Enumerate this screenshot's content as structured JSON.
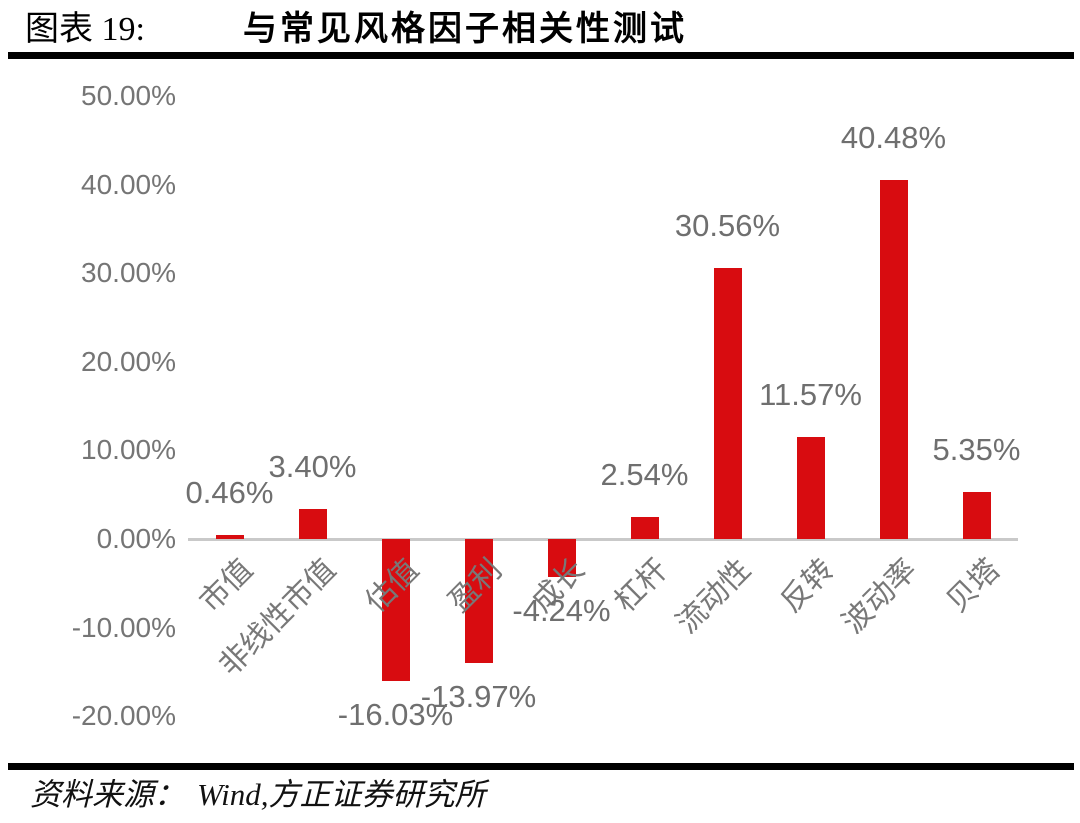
{
  "header": {
    "figure_label": "图表 19:",
    "figure_title": "与常见风格因子相关性测试"
  },
  "source": {
    "label": "资料来源：",
    "text": "Wind,方正证券研究所"
  },
  "chart_data": {
    "type": "bar",
    "title": "与常见风格因子相关性测试",
    "categories": [
      "市值",
      "非线性市值",
      "估值",
      "盈利",
      "成长",
      "杠杆",
      "流动性",
      "反转",
      "波动率",
      "贝塔"
    ],
    "values": [
      0.46,
      3.4,
      -16.03,
      -13.97,
      -4.24,
      2.54,
      30.56,
      11.57,
      40.48,
      5.35
    ],
    "data_labels": [
      "0.46%",
      "3.40%",
      "-16.03%",
      "-13.97%",
      "-4.24%",
      "2.54%",
      "30.56%",
      "11.57%",
      "40.48%",
      "5.35%"
    ],
    "y_tick_labels": [
      "50.00%",
      "40.00%",
      "30.00%",
      "20.00%",
      "10.00%",
      "0.00%",
      "-10.00%",
      "-20.00%"
    ],
    "y_tick_values": [
      50,
      40,
      30,
      20,
      10,
      0,
      -10,
      -20
    ],
    "ylim": [
      -20,
      50
    ],
    "xlabel": "",
    "ylabel": "",
    "grid": false,
    "legend": false,
    "bar_color": "#d80c10",
    "label_color": "#6f6f6f",
    "axis_line_color": "#c9c9c9"
  }
}
